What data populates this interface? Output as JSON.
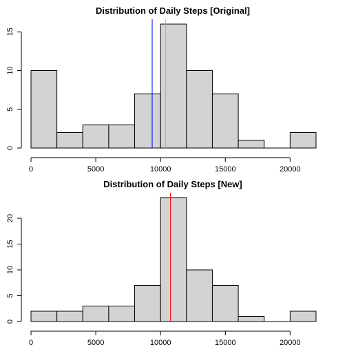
{
  "chart_data": [
    {
      "type": "bar",
      "title": "Distribution of Daily Steps [Original]",
      "xlabel": "",
      "ylabel": "",
      "bin_edges": [
        0,
        2000,
        4000,
        6000,
        8000,
        10000,
        12000,
        14000,
        16000,
        18000,
        20000,
        22000
      ],
      "values": [
        10,
        2,
        3,
        3,
        7,
        16,
        10,
        7,
        1,
        0,
        2
      ],
      "xlim": [
        0,
        22000
      ],
      "ylim": [
        0,
        16
      ],
      "x_ticks": [
        0,
        5000,
        10000,
        15000,
        20000
      ],
      "y_ticks": [
        0,
        5,
        10,
        15
      ],
      "vlines": [
        {
          "x": 9354,
          "color": "#0000ff"
        },
        {
          "x": 10395,
          "color": "#ffa500"
        }
      ],
      "grid": false
    },
    {
      "type": "bar",
      "title": "Distribution of Daily Steps [New]",
      "xlabel": "",
      "ylabel": "",
      "bin_edges": [
        0,
        2000,
        4000,
        6000,
        8000,
        10000,
        12000,
        14000,
        16000,
        18000,
        20000,
        22000
      ],
      "values": [
        2,
        2,
        3,
        3,
        7,
        24,
        10,
        7,
        1,
        0,
        2
      ],
      "xlim": [
        0,
        22000
      ],
      "ylim": [
        0,
        24
      ],
      "x_ticks": [
        0,
        5000,
        10000,
        15000,
        20000
      ],
      "y_ticks": [
        0,
        5,
        10,
        15,
        20
      ],
      "vlines": [
        {
          "x": 10766,
          "color": "#ff0000"
        }
      ],
      "grid": false
    }
  ]
}
